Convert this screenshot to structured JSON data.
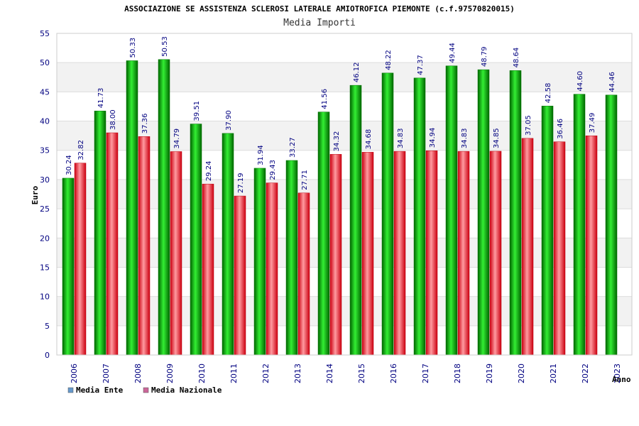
{
  "chart_data": {
    "type": "bar",
    "title": "ASSOCIAZIONE SE ASSISTENZA SCLEROSI LATERALE AMIOTROFICA PIEMONTE (c.f.97570820015)",
    "subtitle": "Media Importi",
    "xlabel": "Anno",
    "ylabel": "Euro",
    "ylim": [
      0,
      55
    ],
    "yticks": [
      0,
      5,
      10,
      15,
      20,
      25,
      30,
      35,
      40,
      45,
      50,
      55
    ],
    "grid": true,
    "legend_position": "bottom-left",
    "categories": [
      "2006",
      "2007",
      "2008",
      "2009",
      "2010",
      "2011",
      "2012",
      "2013",
      "2014",
      "2015",
      "2016",
      "2017",
      "2018",
      "2019",
      "2020",
      "2021",
      "2022",
      "2023"
    ],
    "series": [
      {
        "name": "Media Ente",
        "color": "#00b000",
        "legend_color": "#6699cc",
        "values": [
          30.24,
          41.73,
          50.33,
          50.53,
          39.51,
          37.9,
          31.94,
          33.27,
          41.56,
          46.12,
          48.22,
          47.37,
          49.44,
          48.79,
          48.64,
          42.58,
          44.6,
          44.46
        ],
        "labels": [
          "30.24",
          "41.73",
          "50.33",
          "50.53",
          "39.51",
          "37.90",
          "31.94",
          "33.27",
          "41.56",
          "46.12",
          "48.22",
          "47.37",
          "49.44",
          "48.79",
          "48.64",
          "42.58",
          "44.60",
          "44.46"
        ]
      },
      {
        "name": "Media Nazionale",
        "color": "#e0202a",
        "legend_color": "#cc6699",
        "values": [
          32.82,
          38.0,
          37.36,
          34.79,
          29.24,
          27.19,
          29.43,
          27.71,
          34.32,
          34.68,
          34.83,
          34.94,
          34.83,
          34.85,
          37.05,
          36.46,
          37.49,
          null
        ],
        "labels": [
          "32.82",
          "38.00",
          "37.36",
          "34.79",
          "29.24",
          "27.19",
          "29.43",
          "27.71",
          "34.32",
          "34.68",
          "34.83",
          "34.94",
          "34.83",
          "34.85",
          "37.05",
          "36.46",
          "37.49",
          null
        ]
      }
    ]
  }
}
